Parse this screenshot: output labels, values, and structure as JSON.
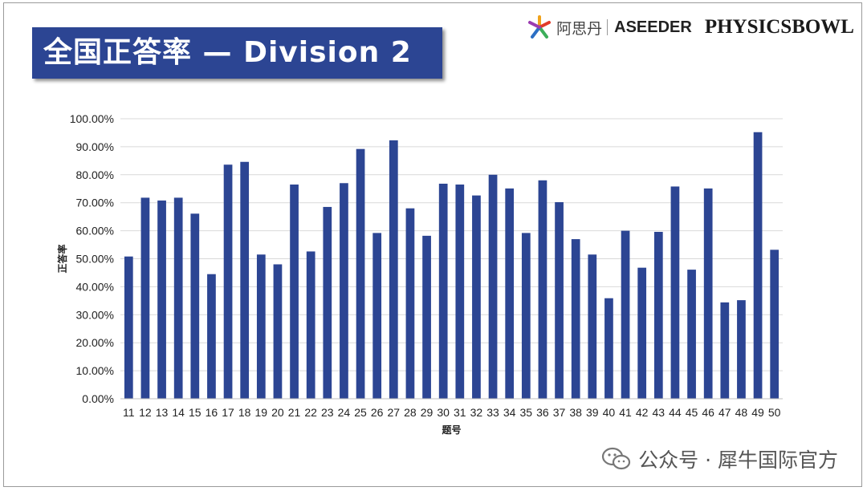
{
  "slide": {
    "title": "全国正答率 — Division 2"
  },
  "logos": {
    "asidan": "阿思丹",
    "aseeder": "ASEEDER",
    "physicsbowl": "PHYSICSBOWL"
  },
  "watermark": {
    "text": "公众号 · 犀牛国际官方"
  },
  "colors": {
    "bar": "#2c4593",
    "banner": "#2c4593",
    "grid": "#d9d9d9"
  },
  "chart_data": {
    "type": "bar",
    "title": "",
    "xlabel": "题号",
    "ylabel": "正答率",
    "ylim": [
      0,
      100
    ],
    "grid": true,
    "legend": "none",
    "y_tick_labels": [
      "0.00%",
      "10.00%",
      "20.00%",
      "30.00%",
      "40.00%",
      "50.00%",
      "60.00%",
      "70.00%",
      "80.00%",
      "90.00%",
      "100.00%"
    ],
    "categories": [
      "11",
      "12",
      "13",
      "14",
      "15",
      "16",
      "17",
      "18",
      "19",
      "20",
      "21",
      "22",
      "23",
      "24",
      "25",
      "26",
      "27",
      "28",
      "29",
      "30",
      "31",
      "32",
      "33",
      "34",
      "35",
      "36",
      "37",
      "38",
      "39",
      "40",
      "41",
      "42",
      "43",
      "44",
      "45",
      "46",
      "47",
      "48",
      "49",
      "50"
    ],
    "values": [
      50.8,
      71.8,
      70.8,
      71.8,
      66.1,
      44.5,
      83.6,
      84.6,
      51.5,
      48.0,
      76.5,
      52.6,
      68.5,
      77.0,
      89.2,
      59.2,
      92.3,
      68.0,
      58.2,
      76.8,
      76.5,
      72.6,
      80.0,
      75.1,
      59.2,
      78.0,
      70.2,
      57.0,
      51.5,
      35.9,
      60.0,
      46.8,
      59.6,
      75.8,
      46.1,
      75.1,
      34.4,
      35.2,
      95.2,
      53.2
    ]
  }
}
